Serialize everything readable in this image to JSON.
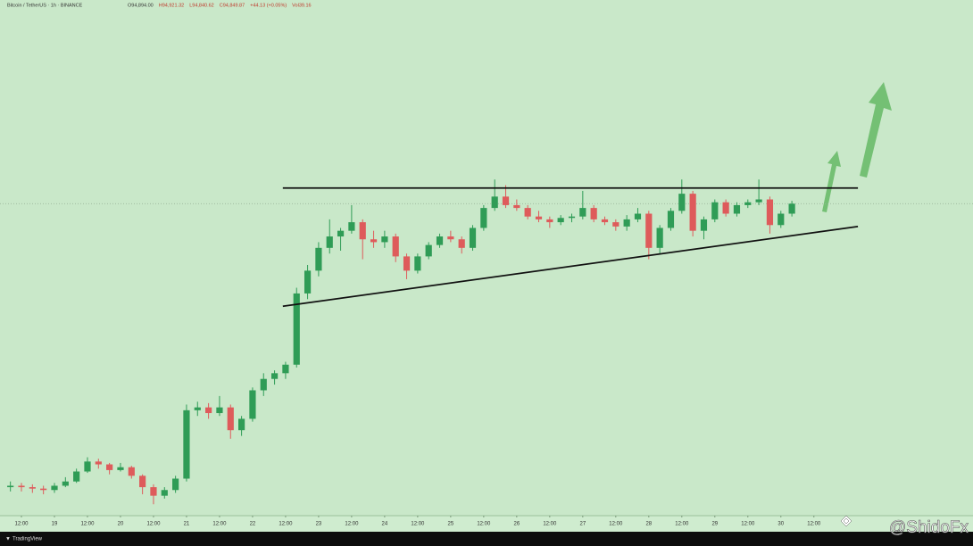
{
  "chart_data": {
    "type": "candlestick",
    "title": "Bitcoin / TetherUS · 1h · BINANCE",
    "header_values": [
      "O94,894.00",
      "H94,921.32",
      "L94,840.62",
      "C94,849.87",
      "+44.13 (+0.05%)",
      "Vol39.16"
    ],
    "watermark": "@ShidoFx",
    "brand": "TradingView",
    "up_color": "#2f9c56",
    "down_color": "#de5b5b",
    "ylim": [
      83900,
      102000
    ],
    "xlim": [
      -0.5,
      86
    ],
    "xticks": [
      {
        "value": 1,
        "label": "12:00"
      },
      {
        "value": 4,
        "label": "19"
      },
      {
        "value": 7,
        "label": "12:00"
      },
      {
        "value": 10,
        "label": "20"
      },
      {
        "value": 13,
        "label": "12:00"
      },
      {
        "value": 16,
        "label": "21"
      },
      {
        "value": 19,
        "label": "12:00"
      },
      {
        "value": 22,
        "label": "22"
      },
      {
        "value": 25,
        "label": "12:00"
      },
      {
        "value": 28,
        "label": "23"
      },
      {
        "value": 31,
        "label": "12:00"
      },
      {
        "value": 34,
        "label": "24"
      },
      {
        "value": 37,
        "label": "12:00"
      },
      {
        "value": 40,
        "label": "25"
      },
      {
        "value": 43,
        "label": "12:00"
      },
      {
        "value": 46,
        "label": "26"
      },
      {
        "value": 49,
        "label": "12:00"
      },
      {
        "value": 52,
        "label": "27"
      },
      {
        "value": 55,
        "label": "12:00"
      },
      {
        "value": 58,
        "label": "28"
      },
      {
        "value": 61,
        "label": "12:00"
      },
      {
        "value": 64,
        "label": "29"
      },
      {
        "value": 67,
        "label": "12:00"
      },
      {
        "value": 70,
        "label": "30"
      },
      {
        "value": 73,
        "label": "12:00"
      }
    ],
    "trend_lines": [
      {
        "x": [
          24.75,
          77
        ],
        "y": [
          95400,
          95400
        ]
      },
      {
        "x": [
          24.75,
          77
        ],
        "y": [
          91250,
          94050
        ]
      }
    ],
    "open": [
      84900,
      84950,
      84900,
      84850,
      84800,
      84950,
      85100,
      85450,
      85800,
      85700,
      85500,
      85600,
      85300,
      84900,
      84600,
      84800,
      85200,
      87600,
      87700,
      87500,
      87700,
      86900,
      87300,
      88300,
      88700,
      88900,
      89200,
      91700,
      92500,
      93300,
      93700,
      93900,
      94200,
      93600,
      93500,
      93700,
      93000,
      92500,
      93000,
      93400,
      93700,
      93600,
      93300,
      94000,
      94700,
      95100,
      94800,
      94700,
      94400,
      94300,
      94200,
      94350,
      94400,
      94700,
      94300,
      94200,
      94050,
      94300,
      94500,
      93300,
      94000,
      94600,
      95200,
      93900,
      94300,
      94900,
      94500,
      94800,
      94900,
      95000,
      94100,
      94500
    ],
    "high": [
      85100,
      85050,
      85000,
      84950,
      85050,
      85250,
      85550,
      85950,
      85900,
      85750,
      85750,
      85650,
      85350,
      85000,
      84900,
      85300,
      87800,
      87900,
      87850,
      88100,
      87800,
      87400,
      88400,
      88900,
      89000,
      89300,
      91900,
      92700,
      93500,
      94300,
      94000,
      94800,
      94300,
      93900,
      93900,
      93800,
      93100,
      93100,
      93500,
      93800,
      93900,
      93700,
      94100,
      94800,
      95700,
      95500,
      95000,
      94800,
      94600,
      94400,
      94450,
      94500,
      95300,
      94800,
      94400,
      94300,
      94450,
      94700,
      94600,
      94100,
      94700,
      95700,
      95300,
      94400,
      95000,
      95000,
      94900,
      95000,
      95700,
      95100,
      94600,
      94950
    ],
    "low": [
      84750,
      84750,
      84700,
      84650,
      84700,
      84900,
      85050,
      85400,
      85550,
      85350,
      85450,
      85200,
      84650,
      84300,
      84500,
      84700,
      85100,
      87400,
      87300,
      87400,
      86600,
      86700,
      87200,
      88100,
      88500,
      88700,
      89100,
      91500,
      92300,
      93100,
      93200,
      93800,
      92900,
      93300,
      93300,
      92800,
      92200,
      92400,
      92900,
      93300,
      93500,
      93100,
      93200,
      93900,
      94600,
      94700,
      94600,
      94300,
      94200,
      94000,
      94100,
      94200,
      94300,
      94200,
      94100,
      93900,
      93900,
      94200,
      92900,
      93100,
      93900,
      94500,
      93700,
      93600,
      94200,
      94400,
      94400,
      94700,
      94800,
      93800,
      94000,
      94400
    ],
    "close": [
      84950,
      84900,
      84850,
      84800,
      84950,
      85100,
      85450,
      85800,
      85700,
      85500,
      85600,
      85300,
      84900,
      84600,
      84800,
      85200,
      87600,
      87700,
      87500,
      87700,
      86900,
      87300,
      88300,
      88700,
      88900,
      89200,
      91700,
      92500,
      93300,
      93700,
      93900,
      94200,
      93600,
      93500,
      93700,
      93000,
      92500,
      93000,
      93400,
      93700,
      93600,
      93300,
      94000,
      94700,
      95100,
      94800,
      94700,
      94400,
      94300,
      94200,
      94350,
      94400,
      94700,
      94300,
      94200,
      94050,
      94300,
      94500,
      93300,
      94000,
      94600,
      95200,
      93900,
      94300,
      94900,
      94500,
      94800,
      94900,
      95000,
      94100,
      94500,
      94850
    ]
  }
}
